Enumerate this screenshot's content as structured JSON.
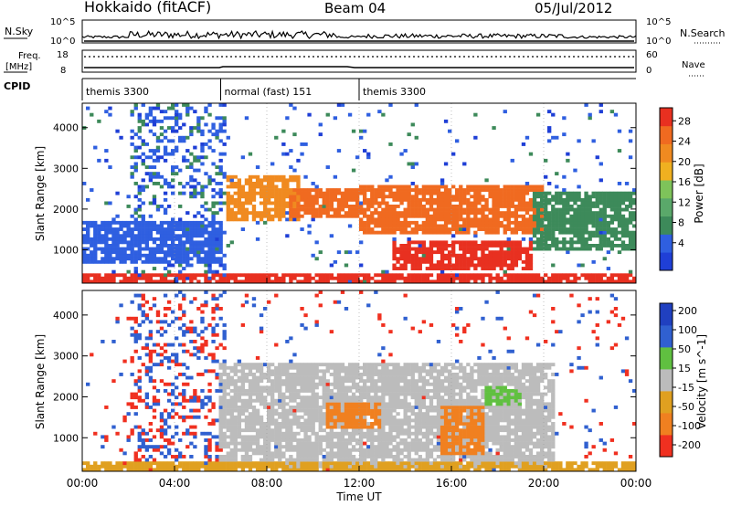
{
  "header": {
    "station": "Hokkaido (fitACF)",
    "beam": "Beam 04",
    "date": "05/Jul/2012"
  },
  "noise_panel": {
    "left_label": "N.Sky",
    "right_label": "N.Search",
    "ticks": [
      "10^5",
      "10^0"
    ]
  },
  "freq_panel": {
    "left_label_1": "Freq.",
    "left_label_2": "[MHz]",
    "right_label": "Nave",
    "left_ticks": [
      "18",
      "8"
    ],
    "right_ticks": [
      "60",
      "0"
    ]
  },
  "cpid_panel": {
    "label": "CPID",
    "segments": [
      {
        "name": "themis 3300",
        "start_hour": 0,
        "end_hour": 6
      },
      {
        "name": "normal (fast) 151",
        "start_hour": 6,
        "end_hour": 12
      },
      {
        "name": "themis 3300",
        "start_hour": 12,
        "end_hour": 24
      }
    ]
  },
  "colors": {
    "power": [
      "#1f3fd6",
      "#2f5fe0",
      "#3d8a5a",
      "#5aa86a",
      "#7ec35a",
      "#f0b020",
      "#f08a20",
      "#f06a20",
      "#e83020"
    ],
    "velocity": [
      "#2040c0",
      "#3060d0",
      "#60c040",
      "#bcbcbc",
      "#e0a020",
      "#f08020",
      "#f03020"
    ]
  },
  "chart_data": [
    {
      "type": "heatmap",
      "name": "Power",
      "xlabel": "Time UT",
      "ylabel": "Slant Range [km]",
      "xlim": [
        0,
        24
      ],
      "ylim": [
        180,
        4600
      ],
      "y_ticks": [
        "1000",
        "2000",
        "3000",
        "4000"
      ],
      "colorbar": {
        "label": "Power [dB]",
        "ticks": [
          "4",
          "8",
          "12",
          "16",
          "20",
          "24",
          "28"
        ],
        "range": [
          0,
          30
        ]
      },
      "features": [
        {
          "t": [
            6.3,
            9.5
          ],
          "r": [
            1700,
            2800
          ],
          "level": 22
        },
        {
          "t": [
            9.0,
            12.0
          ],
          "r": [
            1800,
            2500
          ],
          "level": 24
        },
        {
          "t": [
            12.0,
            20.0
          ],
          "r": [
            1400,
            2600
          ],
          "level": 24
        },
        {
          "t": [
            13.5,
            19.5
          ],
          "r": [
            500,
            1200
          ],
          "level": 27
        },
        {
          "t": [
            0.0,
            24.0
          ],
          "r": [
            180,
            450
          ],
          "level": 28
        },
        {
          "t": [
            0.0,
            6.0
          ],
          "r": [
            700,
            1700
          ],
          "level": 6
        },
        {
          "t": [
            19.5,
            24.0
          ],
          "r": [
            1000,
            2400
          ],
          "level": 7
        }
      ]
    },
    {
      "type": "heatmap",
      "name": "Velocity",
      "xlabel": "Time UT",
      "ylabel": "Slant Range [km]",
      "xlim": [
        0,
        24
      ],
      "ylim": [
        180,
        4600
      ],
      "y_ticks": [
        "1000",
        "2000",
        "3000",
        "4000"
      ],
      "colorbar": {
        "label": "Velocity [m s^-1]",
        "ticks": [
          "200",
          "100",
          "50",
          "15",
          "-15",
          "-50",
          "-100",
          "-200"
        ],
        "range": [
          -250,
          250
        ]
      },
      "features": [
        {
          "t": [
            6.0,
            20.5
          ],
          "r": [
            300,
            2800
          ],
          "level": 0
        },
        {
          "t": [
            10.5,
            13.0
          ],
          "r": [
            1200,
            1900
          ],
          "level": -60
        },
        {
          "t": [
            15.5,
            17.5
          ],
          "r": [
            600,
            1800
          ],
          "level": -60
        },
        {
          "t": [
            17.5,
            19.0
          ],
          "r": [
            1800,
            2300
          ],
          "level": 40
        },
        {
          "t": [
            0.0,
            24.0
          ],
          "r": [
            180,
            450
          ],
          "level": -40
        }
      ]
    }
  ],
  "x_ticks": [
    "00:00",
    "04:00",
    "08:00",
    "12:00",
    "16:00",
    "20:00",
    "00:00"
  ],
  "x_axis_title": "Time UT"
}
